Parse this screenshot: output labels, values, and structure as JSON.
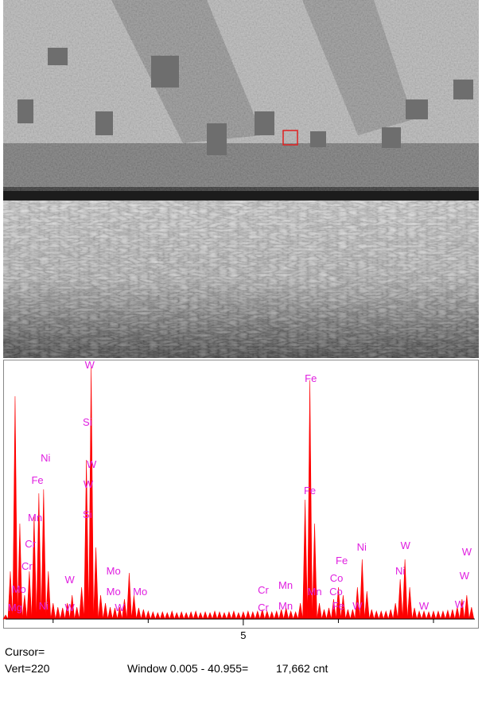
{
  "chart_data": {
    "type": "spectrum",
    "color": "#ff0000",
    "x": [
      0.0,
      0.1,
      0.2,
      0.3,
      0.4,
      0.5,
      0.6,
      0.7,
      0.8,
      0.9,
      1.0,
      1.1,
      1.2,
      1.3,
      1.4,
      1.5,
      1.6,
      1.7,
      1.8,
      1.9,
      2.0,
      2.1,
      2.2,
      2.3,
      2.4,
      2.5,
      2.6,
      2.7,
      2.8,
      2.9,
      3.0,
      3.1,
      3.2,
      3.3,
      3.4,
      3.5,
      3.6,
      3.7,
      3.8,
      3.9,
      4.0,
      4.1,
      4.2,
      4.3,
      4.4,
      4.5,
      4.6,
      4.7,
      4.8,
      4.9,
      5.0,
      5.1,
      5.2,
      5.3,
      5.4,
      5.5,
      5.6,
      5.7,
      5.8,
      5.9,
      6.0,
      6.1,
      6.2,
      6.3,
      6.4,
      6.5,
      6.6,
      6.7,
      6.8,
      6.9,
      7.0,
      7.1,
      7.2,
      7.3,
      7.4,
      7.5,
      7.6,
      7.7,
      7.8,
      7.9,
      8.0,
      8.1,
      8.2,
      8.3,
      8.4,
      8.5,
      8.6,
      8.7,
      8.8,
      8.9,
      9.0,
      9.1,
      9.2,
      9.3,
      9.4,
      9.5,
      9.6,
      9.7,
      9.8
    ],
    "values": [
      5,
      60,
      280,
      120,
      30,
      60,
      130,
      158,
      163,
      60,
      20,
      15,
      14,
      20,
      30,
      15,
      40,
      200,
      318,
      90,
      30,
      20,
      15,
      14,
      15,
      25,
      58,
      30,
      14,
      12,
      10,
      9,
      8,
      9,
      8,
      10,
      8,
      9,
      8,
      9,
      10,
      8,
      9,
      8,
      10,
      9,
      8,
      9,
      10,
      8,
      9,
      10,
      9,
      10,
      12,
      10,
      9,
      10,
      12,
      14,
      10,
      9,
      20,
      150,
      300,
      120,
      20,
      12,
      14,
      25,
      40,
      30,
      12,
      12,
      40,
      75,
      35,
      12,
      10,
      10,
      10,
      12,
      20,
      50,
      75,
      40,
      14,
      10,
      10,
      9,
      10,
      10,
      10,
      11,
      12,
      15,
      25,
      30,
      15
    ],
    "xlim": [
      0,
      9.87
    ],
    "ylim": [
      0,
      320
    ],
    "xticks": [
      5
    ],
    "xminorticks": [
      1,
      3,
      7,
      9
    ],
    "annotations": [
      {
        "text": "W",
        "x": 1.77,
        "y": 315
      },
      {
        "text": "Si",
        "x": 1.72,
        "y": 243
      },
      {
        "text": "Ni",
        "x": 0.84,
        "y": 198
      },
      {
        "text": "Fe",
        "x": 0.67,
        "y": 170
      },
      {
        "text": "W",
        "x": 1.81,
        "y": 190
      },
      {
        "text": "W",
        "x": 1.74,
        "y": 165
      },
      {
        "text": "Mn",
        "x": 0.62,
        "y": 123
      },
      {
        "text": "Si",
        "x": 1.72,
        "y": 127
      },
      {
        "text": "Cr",
        "x": 0.52,
        "y": 90
      },
      {
        "text": "Cr",
        "x": 0.45,
        "y": 62
      },
      {
        "text": "W",
        "x": 1.35,
        "y": 45
      },
      {
        "text": "Mo",
        "x": 2.27,
        "y": 56
      },
      {
        "text": "Mo",
        "x": 2.27,
        "y": 30
      },
      {
        "text": "Mo",
        "x": 2.83,
        "y": 30
      },
      {
        "text": "Mo",
        "x": 0.28,
        "y": 33
      },
      {
        "text": "Fe",
        "x": 6.42,
        "y": 298
      },
      {
        "text": "Fe",
        "x": 6.4,
        "y": 157
      },
      {
        "text": "Fe",
        "x": 7.07,
        "y": 69
      },
      {
        "text": "Ni",
        "x": 7.49,
        "y": 86
      },
      {
        "text": "W",
        "x": 8.41,
        "y": 88
      },
      {
        "text": "W",
        "x": 9.7,
        "y": 80
      },
      {
        "text": "W",
        "x": 9.65,
        "y": 50
      },
      {
        "text": "Co",
        "x": 6.96,
        "y": 47
      },
      {
        "text": "Ni",
        "x": 8.3,
        "y": 56
      },
      {
        "text": "Cr",
        "x": 5.42,
        "y": 32
      },
      {
        "text": "Mn",
        "x": 5.89,
        "y": 38
      },
      {
        "text": "Cr",
        "x": 5.42,
        "y": 10
      },
      {
        "text": "Mn",
        "x": 5.89,
        "y": 12
      },
      {
        "text": "Mn",
        "x": 6.5,
        "y": 30
      },
      {
        "text": "Co",
        "x": 6.95,
        "y": 30
      },
      {
        "text": "Mg",
        "x": 0.2,
        "y": 10
      },
      {
        "text": "Ni",
        "x": 0.8,
        "y": 12
      },
      {
        "text": "W",
        "x": 1.35,
        "y": 10
      },
      {
        "text": "W",
        "x": 2.4,
        "y": 10
      },
      {
        "text": "Fe",
        "x": 7.0,
        "y": 12
      },
      {
        "text": "W",
        "x": 7.4,
        "y": 12
      },
      {
        "text": "W",
        "x": 8.8,
        "y": 12
      },
      {
        "text": "W",
        "x": 9.55,
        "y": 14
      }
    ],
    "cursor": "Cursor=",
    "vert": "Vert=220",
    "window": "Window 0.005 - 40.955=",
    "counts": "17,662 cnt"
  }
}
